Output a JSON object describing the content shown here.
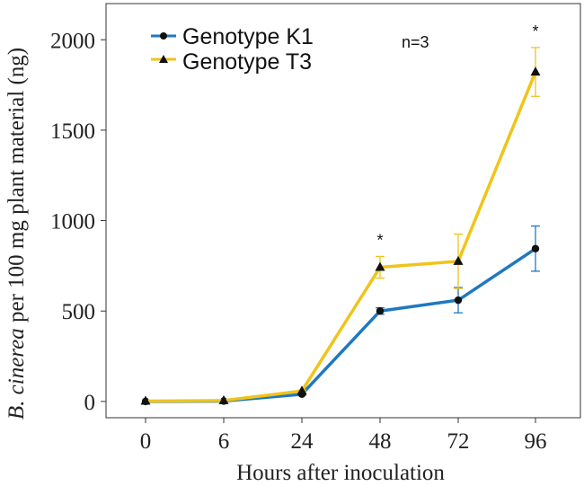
{
  "chart_data": {
    "type": "line",
    "title": "",
    "xlabel": "Hours after inoculation",
    "ylabel": {
      "italic": "B. cinerea",
      "rest": " per 100 mg plant material  (ng)"
    },
    "categories": [
      "0",
      "6",
      "24",
      "48",
      "72",
      "96"
    ],
    "ylim": [
      -90,
      2200
    ],
    "yticks": [
      0,
      500,
      1000,
      1500,
      2000
    ],
    "grid": false,
    "legend_position": "top-left",
    "series": [
      {
        "name": "Genotype K1",
        "color": "#1f78c1",
        "marker": "circle",
        "values": [
          0,
          2,
          40,
          500,
          560,
          845
        ],
        "errors": [
          0,
          0,
          5,
          18,
          70,
          125
        ]
      },
      {
        "name": "Genotype T3",
        "color": "#f0c419",
        "marker": "triangle",
        "values": [
          2,
          5,
          58,
          742,
          775,
          1822
        ],
        "errors": [
          0,
          0,
          5,
          60,
          150,
          135
        ]
      }
    ],
    "annotations": [
      {
        "text": "n=3",
        "position": "top-right"
      },
      {
        "text": "*",
        "category": "48"
      },
      {
        "text": "*",
        "category": "96"
      }
    ]
  }
}
